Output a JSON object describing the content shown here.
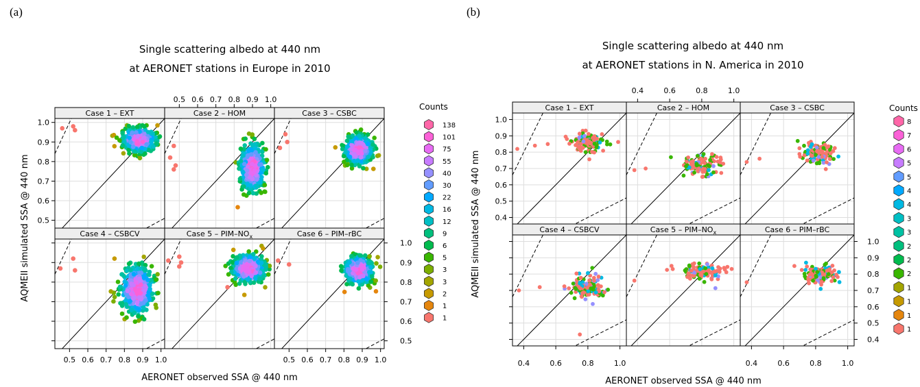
{
  "panel_labels": [
    "(a)",
    "(b)"
  ],
  "colors": {
    "count_scale": [
      "#f8766d",
      "#e5860e",
      "#c69a00",
      "#a3a500",
      "#7cae00",
      "#39b600",
      "#00bb4e",
      "#00bf7d",
      "#00c1a3",
      "#00bfc4",
      "#00b9e3",
      "#00a9ff",
      "#619cff",
      "#9590ff",
      "#c77cff",
      "#e76bf3",
      "#fb61d7",
      "#ff66a8"
    ],
    "frame": "#000000",
    "strip_bg": "#eeeeee",
    "grid": "#dddddd",
    "reference_line": "#000000"
  },
  "chart_data": [
    {
      "type": "scatter",
      "title": "Single scattering albedo at 440 nm",
      "subtitle": "at AERONET stations in Europe in 2010",
      "xlabel": "AERONET observed SSA @ 440 nm",
      "ylabel": "AQMEII simulated SSA @ 440 nm",
      "xlim": [
        0.42,
        1.02
      ],
      "ylim": [
        0.46,
        1.02
      ],
      "x_ticks": [
        "0.5",
        "0.6",
        "0.7",
        "0.8",
        "0.9",
        "1.0"
      ],
      "y_ticks": [
        "0.5",
        "0.6",
        "0.7",
        "0.8",
        "0.9",
        "1.0"
      ],
      "x_tick_values": [
        0.5,
        0.6,
        0.7,
        0.8,
        0.9,
        1.0
      ],
      "y_tick_values": [
        0.5,
        0.6,
        0.7,
        0.8,
        0.9,
        1.0
      ],
      "grid": true,
      "reference_lines": [
        "1:1 (solid)",
        "2:1 and 1:2 (dashed)"
      ],
      "legend": {
        "title": "Counts",
        "position": "right",
        "values": [
          "138",
          "101",
          "75",
          "55",
          "40",
          "30",
          "22",
          "16",
          "12",
          "9",
          "6",
          "5",
          "3",
          "3",
          "2",
          "1",
          "1"
        ]
      },
      "panels": [
        {
          "label": "Case 1 – EXT",
          "sub": "",
          "cx": 0.88,
          "cy": 0.91,
          "sx": 0.08,
          "sy": 0.055,
          "n": 420,
          "outliers": [
            [
              0.46,
              0.97
            ],
            [
              0.52,
              0.98
            ],
            [
              0.53,
              0.96
            ]
          ]
        },
        {
          "label": "Case 2 – HOM",
          "sub": "",
          "cx": 0.9,
          "cy": 0.77,
          "sx": 0.06,
          "sy": 0.11,
          "n": 420,
          "outliers": [
            [
              0.45,
              0.82
            ],
            [
              0.47,
              0.88
            ],
            [
              0.48,
              0.78
            ],
            [
              0.47,
              0.76
            ]
          ]
        },
        {
          "label": "Case 3 – CSBC",
          "sub": "",
          "cx": 0.88,
          "cy": 0.86,
          "sx": 0.07,
          "sy": 0.065,
          "n": 420,
          "outliers": [
            [
              0.45,
              0.87
            ],
            [
              0.48,
              0.94
            ],
            [
              0.49,
              0.9
            ]
          ]
        },
        {
          "label": "Case 4 – CSBCV",
          "sub": "",
          "cx": 0.87,
          "cy": 0.76,
          "sx": 0.08,
          "sy": 0.11,
          "n": 420,
          "outliers": [
            [
              0.45,
              0.87
            ],
            [
              0.52,
              0.92
            ],
            [
              0.53,
              0.86
            ]
          ]
        },
        {
          "label": "Case 5 – PIM–NO",
          "sub": "x",
          "cx": 0.88,
          "cy": 0.87,
          "sx": 0.08,
          "sy": 0.065,
          "n": 420,
          "outliers": [
            [
              0.44,
              0.91
            ],
            [
              0.5,
              0.93
            ],
            [
              0.51,
              0.9
            ],
            [
              0.5,
              0.88
            ]
          ]
        },
        {
          "label": "Case 6 – PIM–rBC",
          "sub": "",
          "cx": 0.88,
          "cy": 0.86,
          "sx": 0.07,
          "sy": 0.065,
          "n": 420,
          "outliers": [
            [
              0.44,
              0.91
            ],
            [
              0.5,
              0.89
            ]
          ]
        }
      ]
    },
    {
      "type": "scatter",
      "title": "Single scattering albedo at 440 nm",
      "subtitle": "at AERONET stations in N. America in 2010",
      "xlabel": "AERONET observed SSA @ 440 nm",
      "ylabel": "AQMEII simulated SSA @ 440 nm",
      "xlim": [
        0.33,
        1.04
      ],
      "ylim": [
        0.36,
        1.04
      ],
      "x_ticks": [
        "0.4",
        "0.6",
        "0.8",
        "1.0"
      ],
      "y_ticks": [
        "0.4",
        "0.5",
        "0.6",
        "0.7",
        "0.8",
        "0.9",
        "1.0"
      ],
      "x_tick_values": [
        0.4,
        0.6,
        0.8,
        1.0
      ],
      "y_tick_values": [
        0.4,
        0.5,
        0.6,
        0.7,
        0.8,
        0.9,
        1.0
      ],
      "grid": true,
      "reference_lines": [
        "1:1 (solid)",
        "2:1 and 1:2 (dashed)"
      ],
      "legend": {
        "title": "Counts",
        "position": "right",
        "values": [
          "8",
          "7",
          "6",
          "5",
          "5",
          "4",
          "4",
          "3",
          "3",
          "2",
          "2",
          "2",
          "1",
          "1",
          "1",
          "1"
        ]
      },
      "panels": [
        {
          "label": "Case 1 – EXT",
          "sub": "",
          "cx": 0.8,
          "cy": 0.86,
          "sx": 0.1,
          "sy": 0.05,
          "n": 110,
          "outliers": [
            [
              0.36,
              0.82
            ],
            [
              0.47,
              0.84
            ],
            [
              0.55,
              0.85
            ]
          ]
        },
        {
          "label": "Case 2 – HOM",
          "sub": "",
          "cx": 0.8,
          "cy": 0.72,
          "sx": 0.12,
          "sy": 0.06,
          "n": 110,
          "outliers": [
            [
              0.38,
              0.69
            ],
            [
              0.45,
              0.7
            ]
          ]
        },
        {
          "label": "Case 3 – CSBC",
          "sub": "",
          "cx": 0.82,
          "cy": 0.79,
          "sx": 0.1,
          "sy": 0.06,
          "n": 110,
          "outliers": [
            [
              0.37,
              0.74
            ],
            [
              0.45,
              0.76
            ]
          ]
        },
        {
          "label": "Case 4 – CSBCV",
          "sub": "",
          "cx": 0.8,
          "cy": 0.72,
          "sx": 0.11,
          "sy": 0.07,
          "n": 110,
          "outliers": [
            [
              0.37,
              0.7
            ],
            [
              0.5,
              0.72
            ],
            [
              0.75,
              0.43
            ]
          ]
        },
        {
          "label": "Case 5 – PIM–NO",
          "sub": "x",
          "cx": 0.8,
          "cy": 0.81,
          "sx": 0.12,
          "sy": 0.05,
          "n": 110,
          "outliers": [
            [
              0.38,
              0.76
            ]
          ]
        },
        {
          "label": "Case 6 – PIM–rBC",
          "sub": "",
          "cx": 0.82,
          "cy": 0.8,
          "sx": 0.1,
          "sy": 0.05,
          "n": 110,
          "outliers": [
            [
              0.37,
              0.75
            ]
          ]
        }
      ]
    }
  ]
}
